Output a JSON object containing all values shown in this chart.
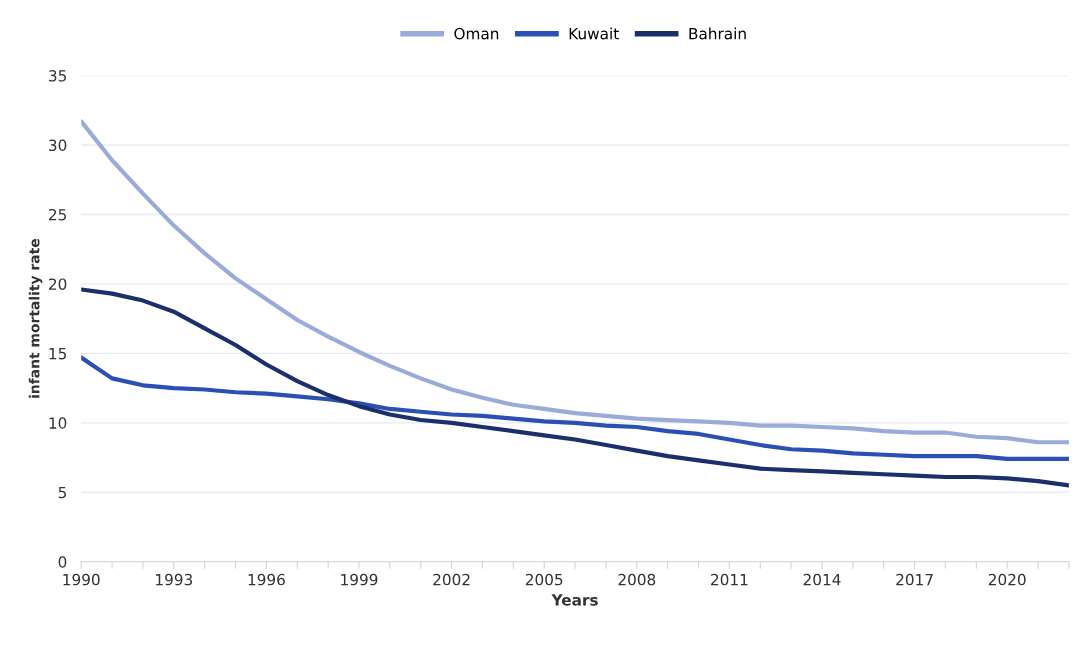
{
  "chart_data": {
    "type": "line",
    "xlabel": "Years",
    "ylabel": "infant mortality rate",
    "x": [
      1990,
      1991,
      1992,
      1993,
      1994,
      1995,
      1996,
      1997,
      1998,
      1999,
      2000,
      2001,
      2002,
      2003,
      2004,
      2005,
      2006,
      2007,
      2008,
      2009,
      2010,
      2011,
      2012,
      2013,
      2014,
      2015,
      2016,
      2017,
      2018,
      2019,
      2020,
      2021,
      2022
    ],
    "series": [
      {
        "name": "Oman",
        "color": "#9aabd9",
        "values": [
          31.7,
          28.9,
          26.5,
          24.2,
          22.2,
          20.4,
          18.9,
          17.4,
          16.2,
          15.1,
          14.1,
          13.2,
          12.4,
          11.8,
          11.3,
          11.0,
          10.7,
          10.5,
          10.3,
          10.2,
          10.1,
          10.0,
          9.8,
          9.8,
          9.7,
          9.6,
          9.4,
          9.3,
          9.3,
          9.0,
          8.9,
          8.6,
          8.6
        ]
      },
      {
        "name": "Kuwait",
        "color": "#2a4fb5",
        "values": [
          14.7,
          13.2,
          12.7,
          12.5,
          12.4,
          12.2,
          12.1,
          11.9,
          11.7,
          11.4,
          11.0,
          10.8,
          10.6,
          10.5,
          10.3,
          10.1,
          10.0,
          9.8,
          9.7,
          9.4,
          9.2,
          8.8,
          8.4,
          8.1,
          8.0,
          7.8,
          7.7,
          7.6,
          7.6,
          7.6,
          7.4,
          7.4,
          7.4
        ]
      },
      {
        "name": "Bahrain",
        "color": "#1b2f6b",
        "values": [
          19.6,
          19.3,
          18.8,
          18.0,
          16.8,
          15.6,
          14.2,
          13.0,
          12.0,
          11.2,
          10.6,
          10.2,
          10.0,
          9.7,
          9.4,
          9.1,
          8.8,
          8.4,
          8.0,
          7.6,
          7.3,
          7.0,
          6.7,
          6.6,
          6.5,
          6.4,
          6.3,
          6.2,
          6.1,
          6.1,
          6.0,
          5.8,
          5.5
        ]
      }
    ],
    "xlim": [
      1990,
      2022
    ],
    "xticks": [
      1990,
      {
        "value": 1991,
        "label": null
      },
      {
        "value": 1992,
        "label": null
      },
      1993,
      {
        "value": 1994,
        "label": null
      },
      {
        "value": 1995,
        "label": null
      },
      1996,
      {
        "value": 1997,
        "label": null
      },
      {
        "value": 1998,
        "label": null
      },
      1999,
      {
        "value": 2000,
        "label": null
      },
      {
        "value": 2001,
        "label": null
      },
      2002,
      {
        "value": 2003,
        "label": null
      },
      {
        "value": 2004,
        "label": null
      },
      2005,
      {
        "value": 2006,
        "label": null
      },
      {
        "value": 2007,
        "label": null
      },
      2008,
      {
        "value": 2009,
        "label": null
      },
      {
        "value": 2010,
        "label": null
      },
      2011,
      {
        "value": 2012,
        "label": null
      },
      {
        "value": 2013,
        "label": null
      },
      2014,
      {
        "value": 2015,
        "label": null
      },
      {
        "value": 2016,
        "label": null
      },
      2017,
      {
        "value": 2018,
        "label": null
      },
      {
        "value": 2019,
        "label": null
      },
      2020,
      {
        "value": 2021,
        "label": null
      },
      {
        "value": 2022,
        "label": null
      }
    ],
    "ylim": [
      0,
      35
    ],
    "yticks": [
      0,
      5,
      10,
      15,
      20,
      25,
      30,
      35
    ],
    "grid": "y",
    "legend": "top",
    "marker": "none",
    "line_style": "solid"
  }
}
